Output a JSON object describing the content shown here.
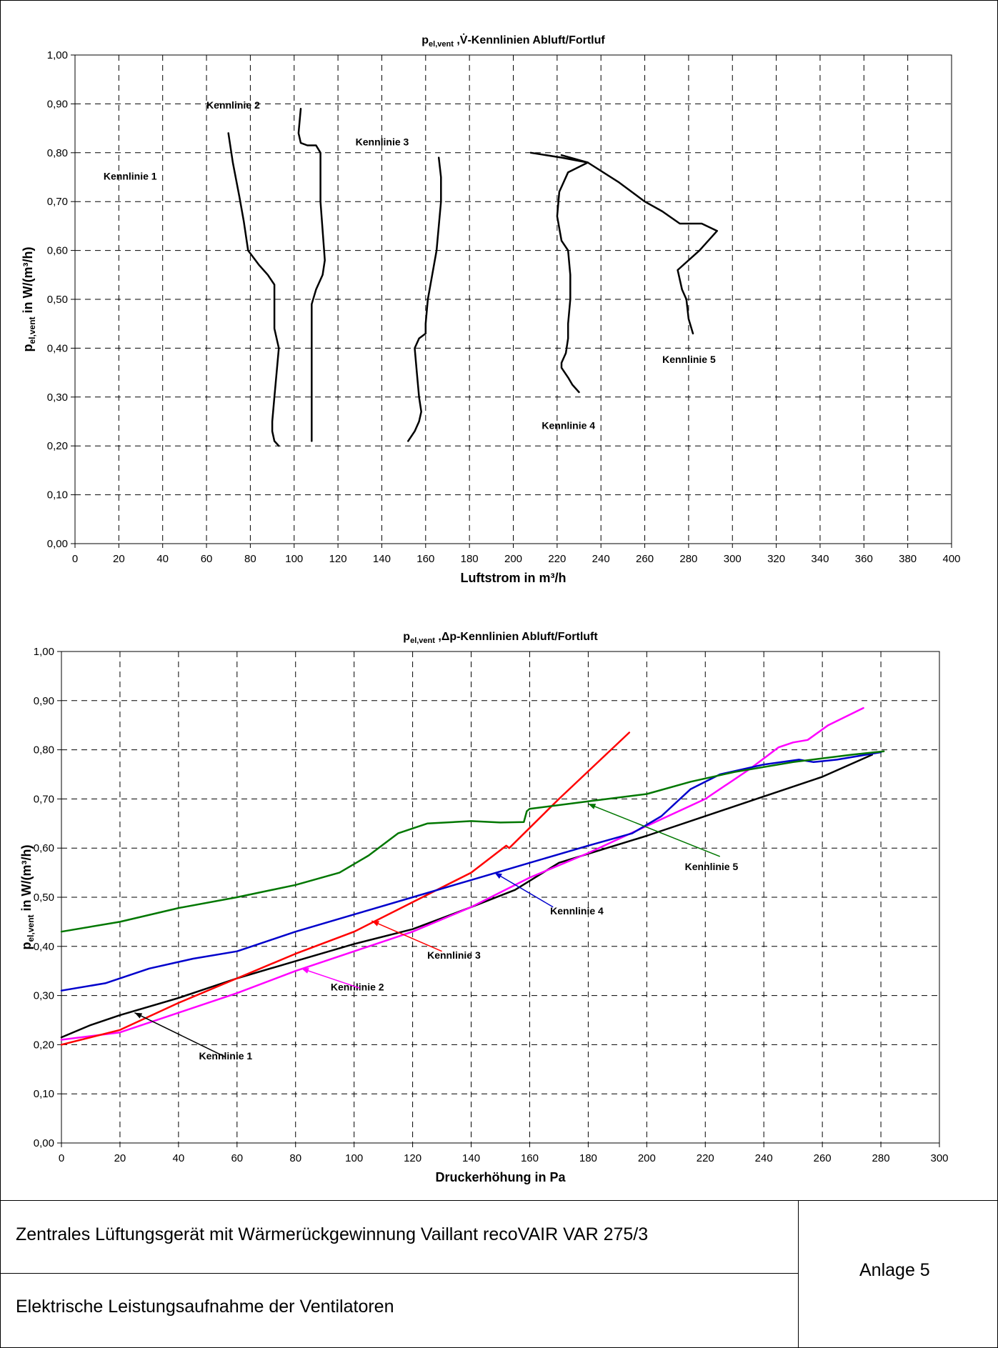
{
  "colors": {
    "kennlinie_1": "#000000",
    "kennlinie_2": "#ff00ff",
    "kennlinie_3": "#ff0000",
    "kennlinie_4": "#0000cc",
    "kennlinie_5": "#007700"
  },
  "chart_data": [
    {
      "type": "line",
      "title_main": "p",
      "title_sub": "el,vent",
      "title_rest": " ,V̇-Kennlinien Abluft/Fortluf",
      "xlabel": "Luftstrom in m³/h",
      "ylabel_main": "p",
      "ylabel_sub": "el,vent",
      "ylabel_rest": " in W/(m³/h)",
      "xlim": [
        0,
        400
      ],
      "ylim": [
        0,
        1.0
      ],
      "x_ticks": [
        "0",
        "20",
        "40",
        "60",
        "80",
        "100",
        "120",
        "140",
        "160",
        "180",
        "200",
        "220",
        "240",
        "260",
        "280",
        "300",
        "320",
        "340",
        "360",
        "380",
        "400"
      ],
      "y_ticks": [
        "0,00",
        "0,10",
        "0,20",
        "0,30",
        "0,40",
        "0,50",
        "0,60",
        "0,70",
        "0,80",
        "0,90",
        "1,00"
      ],
      "grid": true,
      "series": [
        {
          "name": "Kennlinie 1",
          "color": "#000000",
          "x": [
            70,
            72,
            75,
            77,
            79,
            84,
            88,
            91,
            91,
            91,
            93,
            92,
            91,
            90,
            90,
            91,
            93
          ],
          "y": [
            0.84,
            0.78,
            0.71,
            0.66,
            0.6,
            0.57,
            0.55,
            0.53,
            0.48,
            0.44,
            0.4,
            0.35,
            0.3,
            0.25,
            0.23,
            0.21,
            0.2
          ]
        },
        {
          "name": "Kennlinie 2",
          "color": "#000000",
          "x": [
            103,
            102,
            103,
            106,
            110,
            112,
            112,
            114,
            113,
            110,
            108,
            108,
            108,
            108,
            108
          ],
          "y": [
            0.89,
            0.84,
            0.82,
            0.815,
            0.815,
            0.8,
            0.7,
            0.58,
            0.55,
            0.52,
            0.49,
            0.45,
            0.3,
            0.25,
            0.21
          ]
        },
        {
          "name": "Kennlinie 3",
          "color": "#000000",
          "x": [
            166,
            167,
            167,
            166,
            165,
            163,
            161,
            160,
            160,
            157,
            155,
            156,
            157,
            158,
            157,
            155,
            152
          ],
          "y": [
            0.79,
            0.75,
            0.7,
            0.65,
            0.6,
            0.55,
            0.5,
            0.45,
            0.43,
            0.42,
            0.4,
            0.35,
            0.3,
            0.27,
            0.25,
            0.23,
            0.21
          ]
        },
        {
          "name": "Kennlinie 4",
          "color": "#000000",
          "x": [
            208,
            222,
            228,
            234,
            225,
            221,
            220,
            222,
            225,
            226,
            226,
            225,
            225,
            224,
            222,
            222,
            225,
            227,
            230
          ],
          "y": [
            0.8,
            0.79,
            0.785,
            0.78,
            0.76,
            0.72,
            0.67,
            0.62,
            0.6,
            0.55,
            0.5,
            0.45,
            0.42,
            0.39,
            0.37,
            0.36,
            0.34,
            0.325,
            0.31
          ]
        },
        {
          "name": "Kennlinie 5",
          "color": "#000000",
          "x": [
            222,
            234,
            248,
            260,
            268,
            276,
            286,
            293,
            285,
            275,
            277,
            279,
            280,
            282
          ],
          "y": [
            0.795,
            0.78,
            0.74,
            0.7,
            0.68,
            0.655,
            0.655,
            0.64,
            0.6,
            0.56,
            0.52,
            0.5,
            0.46,
            0.43
          ]
        }
      ],
      "annotations": [
        {
          "text": "Kennlinie 1",
          "x": 13,
          "y": 0.745
        },
        {
          "text": "Kennlinie 2",
          "x": 60,
          "y": 0.89
        },
        {
          "text": "Kennlinie 3",
          "x": 128,
          "y": 0.815
        },
        {
          "text": "Kennlinie 4",
          "x": 213,
          "y": 0.235
        },
        {
          "text": "Kennlinie 5",
          "x": 268,
          "y": 0.37
        }
      ]
    },
    {
      "type": "line",
      "title_main": "p",
      "title_sub": "el,vent",
      "title_rest": " ,Δp-Kennlinien Abluft/Fortluft",
      "xlabel": "Druckerhöhung in Pa",
      "ylabel_main": "p",
      "ylabel_sub": "el,vent",
      "ylabel_rest": " in W/(m³/h)",
      "xlim": [
        0,
        300
      ],
      "ylim": [
        0,
        1.0
      ],
      "x_ticks": [
        "0",
        "20",
        "40",
        "60",
        "80",
        "100",
        "120",
        "140",
        "160",
        "180",
        "200",
        "220",
        "240",
        "260",
        "280",
        "300"
      ],
      "y_ticks": [
        "0,00",
        "0,10",
        "0,20",
        "0,30",
        "0,40",
        "0,50",
        "0,60",
        "0,70",
        "0,80",
        "0,90",
        "1,00"
      ],
      "grid": true,
      "series": [
        {
          "name": "Kennlinie 1",
          "color": "#000000",
          "x": [
            0,
            10,
            20,
            40,
            60,
            80,
            100,
            120,
            140,
            155,
            170,
            200,
            230,
            260,
            277
          ],
          "y": [
            0.215,
            0.24,
            0.26,
            0.295,
            0.335,
            0.37,
            0.405,
            0.435,
            0.48,
            0.515,
            0.57,
            0.625,
            0.685,
            0.745,
            0.79
          ]
        },
        {
          "name": "Kennlinie 2",
          "color": "#ff00ff",
          "x": [
            0,
            20,
            40,
            60,
            80,
            100,
            120,
            140,
            160,
            180,
            200,
            220,
            235,
            245,
            250,
            255,
            262,
            274
          ],
          "y": [
            0.21,
            0.225,
            0.265,
            0.305,
            0.35,
            0.39,
            0.43,
            0.48,
            0.54,
            0.59,
            0.645,
            0.7,
            0.76,
            0.805,
            0.815,
            0.82,
            0.85,
            0.885
          ]
        },
        {
          "name": "Kennlinie 3",
          "color": "#ff0000",
          "x": [
            0,
            20,
            40,
            60,
            80,
            100,
            120,
            140,
            152,
            153,
            170,
            194
          ],
          "y": [
            0.2,
            0.23,
            0.285,
            0.335,
            0.385,
            0.43,
            0.49,
            0.55,
            0.605,
            0.6,
            0.7,
            0.835
          ]
        },
        {
          "name": "Kennlinie 4",
          "color": "#0000cc",
          "x": [
            0,
            15,
            30,
            45,
            60,
            70,
            80,
            100,
            120,
            140,
            160,
            180,
            195,
            205,
            215,
            225,
            240,
            252,
            257,
            265,
            280
          ],
          "y": [
            0.31,
            0.325,
            0.355,
            0.375,
            0.39,
            0.41,
            0.43,
            0.465,
            0.5,
            0.535,
            0.57,
            0.605,
            0.63,
            0.665,
            0.72,
            0.75,
            0.77,
            0.78,
            0.775,
            0.78,
            0.795
          ]
        },
        {
          "name": "Kennlinie 5",
          "color": "#007700",
          "x": [
            0,
            20,
            40,
            60,
            80,
            95,
            105,
            115,
            125,
            140,
            150,
            158,
            159,
            160,
            180,
            200,
            215,
            230,
            250,
            270,
            281
          ],
          "y": [
            0.43,
            0.45,
            0.478,
            0.5,
            0.525,
            0.55,
            0.585,
            0.63,
            0.65,
            0.655,
            0.652,
            0.653,
            0.675,
            0.68,
            0.695,
            0.71,
            0.735,
            0.755,
            0.775,
            0.79,
            0.797
          ]
        }
      ],
      "annotations": [
        {
          "text": "Kennlinie 1",
          "x": 47,
          "y": 0.17
        },
        {
          "text": "Kennlinie 2",
          "x": 92,
          "y": 0.31
        },
        {
          "text": "Kennlinie 3",
          "x": 125,
          "y": 0.375
        },
        {
          "text": "Kennlinie 4",
          "x": 167,
          "y": 0.465
        },
        {
          "text": "Kennlinie 5",
          "x": 213,
          "y": 0.555
        }
      ]
    }
  ],
  "footer": {
    "line1": "Zentrales Lüftungsgerät mit Wärmerückgewinnung Vaillant recoVAIR VAR 275/3",
    "line2": "Elektrische Leistungsaufnahme der Ventilatoren",
    "annex": "Anlage 5"
  }
}
